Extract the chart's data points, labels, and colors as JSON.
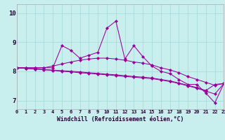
{
  "xlabel": "Windchill (Refroidissement éolien,°C)",
  "background_color": "#c8eeed",
  "grid_color": "#aadddd",
  "line_color": "#990099",
  "xlim": [
    0,
    23
  ],
  "ylim": [
    6.7,
    10.3
  ],
  "yticks": [
    7,
    8,
    9,
    10
  ],
  "xticks": [
    0,
    1,
    2,
    3,
    4,
    5,
    6,
    7,
    8,
    9,
    10,
    11,
    12,
    13,
    14,
    15,
    16,
    17,
    18,
    19,
    20,
    21,
    22,
    23
  ],
  "series1": [
    8.12,
    8.12,
    8.12,
    8.12,
    8.12,
    8.88,
    8.72,
    8.45,
    8.55,
    8.65,
    9.48,
    9.72,
    8.42,
    8.88,
    8.5,
    8.18,
    8.0,
    7.92,
    7.72,
    7.55,
    7.55,
    7.25,
    6.92,
    7.58
  ],
  "series2": [
    8.12,
    8.12,
    8.12,
    8.12,
    8.18,
    8.25,
    8.32,
    8.38,
    8.42,
    8.45,
    8.45,
    8.42,
    8.38,
    8.32,
    8.28,
    8.22,
    8.12,
    8.05,
    7.95,
    7.82,
    7.72,
    7.62,
    7.52,
    7.58
  ],
  "series3": [
    8.12,
    8.1,
    8.08,
    8.05,
    8.03,
    8.0,
    7.98,
    7.95,
    7.93,
    7.9,
    7.88,
    7.85,
    7.82,
    7.8,
    7.77,
    7.75,
    7.7,
    7.65,
    7.58,
    7.5,
    7.42,
    7.32,
    7.22,
    7.58
  ],
  "series4": [
    8.12,
    8.1,
    8.08,
    8.06,
    8.04,
    8.02,
    8.0,
    7.98,
    7.95,
    7.93,
    7.9,
    7.88,
    7.85,
    7.82,
    7.8,
    7.77,
    7.72,
    7.67,
    7.6,
    7.52,
    7.44,
    7.34,
    7.55,
    7.58
  ]
}
